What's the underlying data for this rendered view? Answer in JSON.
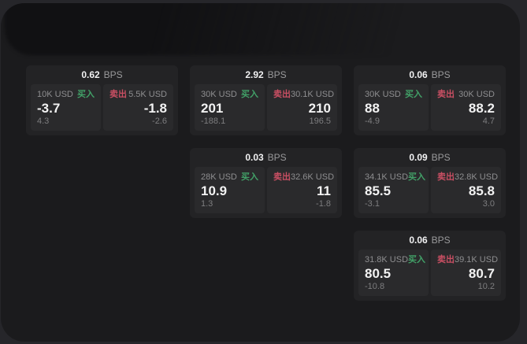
{
  "labels": {
    "buy": "买入",
    "sell": "卖出",
    "bps": "BPS"
  },
  "colors": {
    "buy": "#42a168",
    "sell": "#c94f63",
    "panel_bg": "#1b1b1d",
    "card_bg": "#232325",
    "subpanel_bg": "#2a2a2c",
    "text_primary": "#f2f2f2",
    "text_muted": "#8e8e90"
  },
  "cards": [
    {
      "col": 1,
      "row": 1,
      "bps": "0.62",
      "buy": {
        "size": "10K USD",
        "price": "-3.7",
        "delta": "4.3"
      },
      "sell": {
        "size": "5.5K USD",
        "price": "-1.8",
        "delta": "-2.6"
      }
    },
    {
      "col": 2,
      "row": 1,
      "bps": "2.92",
      "buy": {
        "size": "30K USD",
        "price": "201",
        "delta": "-188.1"
      },
      "sell": {
        "size": "30.1K USD",
        "price": "210",
        "delta": "196.5"
      }
    },
    {
      "col": 3,
      "row": 1,
      "bps": "0.06",
      "buy": {
        "size": "30K USD",
        "price": "88",
        "delta": "-4.9"
      },
      "sell": {
        "size": "30K USD",
        "price": "88.2",
        "delta": "4.7"
      }
    },
    {
      "col": 2,
      "row": 2,
      "bps": "0.03",
      "buy": {
        "size": "28K USD",
        "price": "10.9",
        "delta": "1.3"
      },
      "sell": {
        "size": "32.6K USD",
        "price": "11",
        "delta": "-1.8"
      }
    },
    {
      "col": 3,
      "row": 2,
      "bps": "0.09",
      "buy": {
        "size": "34.1K USD",
        "price": "85.5",
        "delta": "-3.1"
      },
      "sell": {
        "size": "32.8K USD",
        "price": "85.8",
        "delta": "3.0"
      }
    },
    {
      "col": 3,
      "row": 3,
      "bps": "0.06",
      "buy": {
        "size": "31.8K USD",
        "price": "80.5",
        "delta": "-10.8"
      },
      "sell": {
        "size": "39.1K USD",
        "price": "80.7",
        "delta": "10.2"
      }
    }
  ]
}
